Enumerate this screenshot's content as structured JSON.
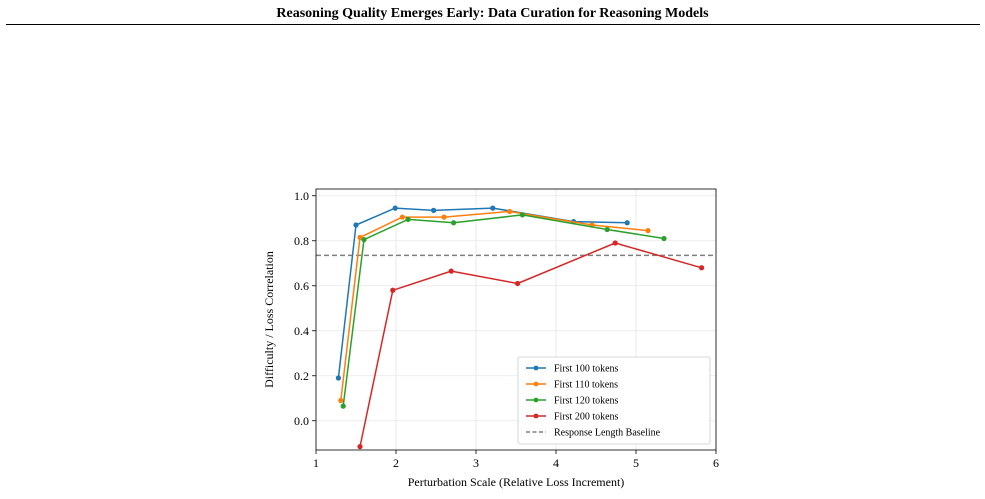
{
  "page": {
    "title": "Reasoning Quality Emerges Early: Data Curation for Reasoning Models"
  },
  "chart_data": {
    "type": "line",
    "title": "",
    "xlabel": "Perturbation Scale (Relative Loss Increment)",
    "ylabel": "Difficulty / Loss Correlation",
    "xlim": [
      1,
      6
    ],
    "ylim": [
      -0.13,
      1.03
    ],
    "xticks": [
      "1",
      "2",
      "3",
      "4",
      "5",
      "6"
    ],
    "yticks": [
      "0.0",
      "0.2",
      "0.4",
      "0.6",
      "0.8",
      "1.0"
    ],
    "grid": true,
    "legend_position": "lower-right",
    "series": [
      {
        "name": "First 100 tokens",
        "color": "#1f77b4",
        "x": [
          1.28,
          1.5,
          1.99,
          2.47,
          3.21,
          4.22,
          4.89
        ],
        "y": [
          0.19,
          0.87,
          0.945,
          0.935,
          0.945,
          0.885,
          0.88
        ]
      },
      {
        "name": "First 110 tokens",
        "color": "#ff7f0e",
        "x": [
          1.31,
          1.55,
          2.08,
          2.6,
          3.42,
          4.45,
          5.15
        ],
        "y": [
          0.09,
          0.815,
          0.905,
          0.905,
          0.93,
          0.87,
          0.845
        ]
      },
      {
        "name": "First 120 tokens",
        "color": "#2ca02c",
        "x": [
          1.34,
          1.6,
          2.15,
          2.72,
          3.58,
          4.64,
          5.35
        ],
        "y": [
          0.065,
          0.805,
          0.895,
          0.88,
          0.915,
          0.85,
          0.81
        ]
      },
      {
        "name": "First 200 tokens",
        "color": "#d62728",
        "x": [
          1.55,
          1.96,
          2.69,
          3.52,
          4.74,
          5.82
        ],
        "y": [
          -0.115,
          0.58,
          0.665,
          0.61,
          0.79,
          0.68
        ]
      }
    ],
    "baseline": {
      "name": "Response Length Baseline",
      "y": 0.735,
      "color": "#7f7f7f"
    }
  }
}
